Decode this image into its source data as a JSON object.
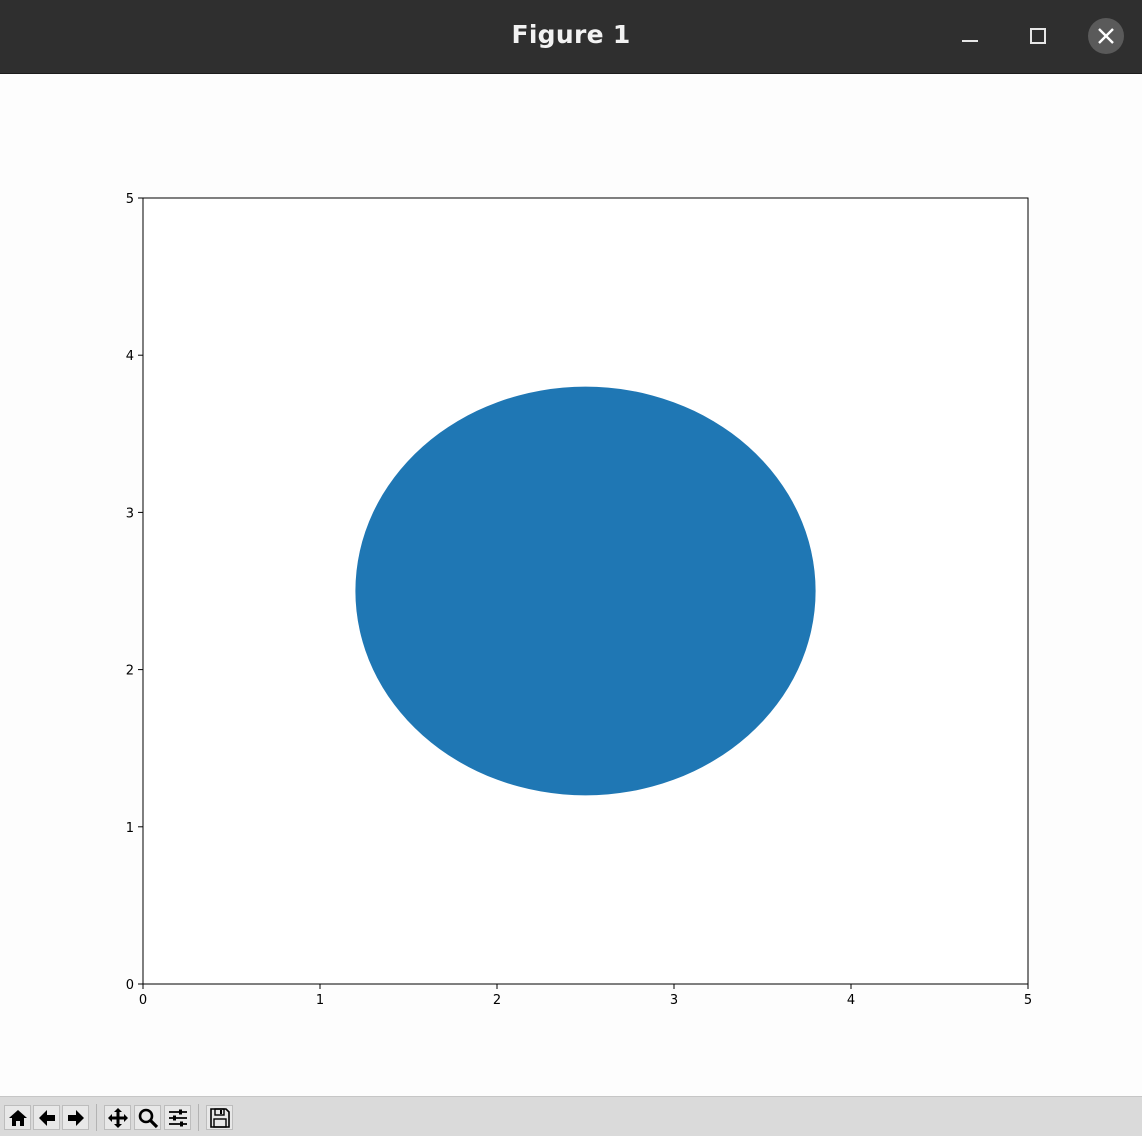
{
  "window": {
    "title": "Figure 1",
    "controls": [
      "minimize-icon",
      "maximize-icon",
      "close-icon"
    ]
  },
  "toolbar": {
    "buttons": [
      "home-icon",
      "back-arrow-icon",
      "forward-arrow-icon",
      "pan-icon",
      "zoom-icon",
      "configure-subplots-icon",
      "save-icon"
    ]
  },
  "chart_data": {
    "type": "ellipse",
    "xlim": [
      0,
      5
    ],
    "ylim": [
      0,
      5
    ],
    "xticks": [
      "0",
      "1",
      "2",
      "3",
      "4",
      "5"
    ],
    "yticks": [
      "0",
      "1",
      "2",
      "3",
      "4",
      "5"
    ],
    "grid": false,
    "shapes": [
      {
        "kind": "ellipse",
        "center": [
          2.5,
          2.5
        ],
        "width": 2.6,
        "height": 2.6,
        "color": "#1f77b4"
      }
    ]
  }
}
